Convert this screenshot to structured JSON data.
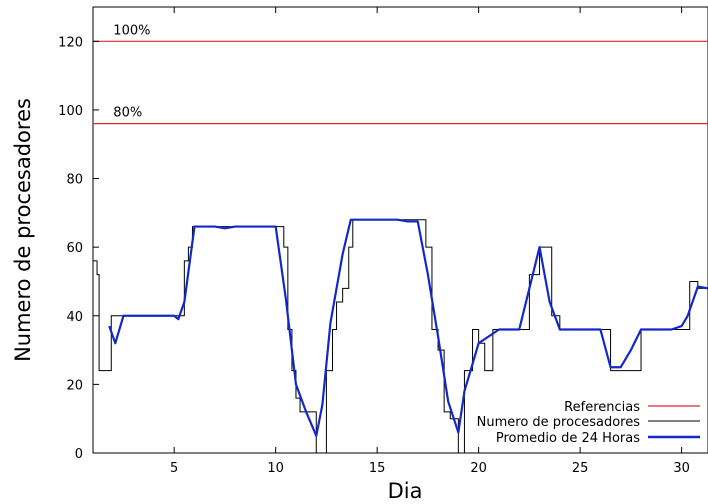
{
  "chart_data": {
    "type": "line",
    "title": "",
    "xlabel": "Dia",
    "ylabel": "Numero de procesadores",
    "xlim": [
      1,
      31.3
    ],
    "ylim": [
      0,
      130
    ],
    "xticks": [
      5,
      10,
      15,
      20,
      25,
      30
    ],
    "yticks": [
      0,
      20,
      40,
      60,
      80,
      100,
      120
    ],
    "grid": false,
    "legend_position": "bottom-right",
    "reference_lines": [
      {
        "y": 120,
        "label": "100%"
      },
      {
        "y": 96,
        "label": "80%"
      }
    ],
    "series": [
      {
        "name": "Referencias",
        "kind": "reference",
        "color": "#e0282e"
      },
      {
        "name": "Numero de procesadores",
        "kind": "step",
        "color": "#000000",
        "x": [
          1.0,
          1.2,
          1.3,
          1.4,
          1.9,
          2.1,
          2.5,
          3.0,
          3.5,
          4.0,
          4.5,
          5.0,
          5.2,
          5.4,
          5.5,
          5.7,
          5.9,
          6.2,
          7.0,
          7.5,
          8.0,
          8.5,
          9.0,
          9.5,
          10.0,
          10.4,
          10.6,
          10.8,
          11.0,
          11.2,
          11.7,
          12.0,
          12.5,
          12.8,
          13.0,
          13.3,
          13.6,
          13.8,
          14.0,
          15.0,
          16.0,
          16.5,
          17.0,
          17.4,
          17.7,
          18.0,
          18.3,
          18.6,
          19.0,
          19.3,
          19.7,
          20.0,
          20.3,
          20.7,
          21.0,
          21.5,
          22.0,
          22.5,
          23.0,
          23.6,
          24.0,
          25.0,
          26.0,
          26.5,
          27.0,
          27.7,
          28.0,
          28.5,
          29.0,
          29.5,
          30.0,
          30.4,
          30.8,
          31.3
        ],
        "y": [
          56,
          52,
          24,
          24,
          40,
          40,
          40,
          40,
          40,
          40,
          40,
          40,
          40,
          40,
          56,
          60,
          66,
          66,
          66,
          66,
          66,
          66,
          66,
          66,
          66,
          60,
          36,
          24,
          16,
          12,
          12,
          0,
          24,
          36,
          44,
          48,
          60,
          68,
          68,
          68,
          68,
          68,
          68,
          60,
          36,
          30,
          12,
          10,
          0,
          24,
          36,
          32,
          24,
          36,
          36,
          36,
          36,
          52,
          60,
          40,
          36,
          36,
          36,
          24,
          24,
          24,
          36,
          36,
          36,
          36,
          36,
          50,
          48,
          48
        ]
      },
      {
        "name": "Promedio de 24 Horas",
        "kind": "line",
        "color": "#1428c8",
        "x": [
          1.8,
          2.1,
          2.5,
          3.0,
          3.5,
          4.0,
          4.5,
          5.0,
          5.2,
          5.5,
          6.0,
          6.5,
          7.0,
          7.5,
          8.0,
          8.5,
          9.0,
          9.5,
          10.0,
          10.5,
          11.0,
          11.5,
          12.0,
          12.3,
          12.7,
          13.0,
          13.3,
          13.7,
          14.0,
          15.0,
          16.0,
          16.5,
          17.0,
          17.5,
          18.0,
          18.5,
          19.0,
          19.3,
          19.7,
          20.0,
          20.5,
          21.0,
          21.5,
          22.0,
          22.5,
          23.0,
          23.5,
          24.0,
          25.0,
          26.0,
          26.5,
          27.0,
          27.5,
          28.0,
          29.0,
          29.5,
          30.0,
          30.3,
          30.8,
          31.3
        ],
        "y": [
          37,
          32,
          40,
          40,
          40,
          40,
          40,
          40,
          39,
          44,
          66,
          66,
          66,
          65.5,
          66,
          66,
          66,
          66,
          66,
          45,
          20,
          12,
          5,
          14,
          38,
          48,
          58,
          68,
          68,
          68,
          68,
          67.5,
          67.5,
          52,
          34,
          15,
          6,
          18,
          26,
          32,
          34,
          36,
          36,
          36,
          48,
          60,
          44,
          36,
          36,
          36,
          25,
          25,
          30,
          36,
          36,
          36,
          37,
          40,
          48.5,
          48
        ]
      }
    ]
  }
}
